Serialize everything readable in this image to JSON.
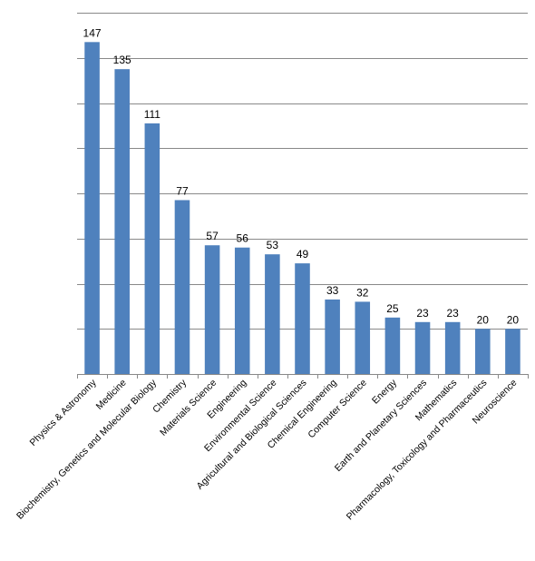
{
  "chart_data": {
    "type": "bar",
    "categories": [
      "Physics & Astronomy",
      "Medicine",
      "Biochemistry, Genetics and Molecular Biology",
      "Chemistry",
      "Materials Science",
      "Engineering",
      "Environmental Science",
      "Agricultural and Biological Sciences",
      "Chemical Engineering",
      "Computer Science",
      "Energy",
      "Earth and Planetary Sciences",
      "Mathematics",
      "Pharmacology, Toxicology and Pharmaceutics",
      "Neuroscience"
    ],
    "values": [
      147,
      135,
      111,
      77,
      57,
      56,
      53,
      49,
      33,
      32,
      25,
      23,
      23,
      20,
      20
    ],
    "data_labels": [
      "147",
      "135",
      "111",
      "77",
      "57",
      "56",
      "53",
      "49",
      "33",
      "32",
      "25",
      "23",
      "23",
      "20",
      "20"
    ],
    "ylim": [
      0,
      160
    ],
    "y_gridlines": [
      20,
      40,
      60,
      80,
      100,
      120,
      140,
      160
    ],
    "grid": true,
    "legend": "none",
    "bar_color": "#4f81bd",
    "grid_color": "#898989"
  }
}
